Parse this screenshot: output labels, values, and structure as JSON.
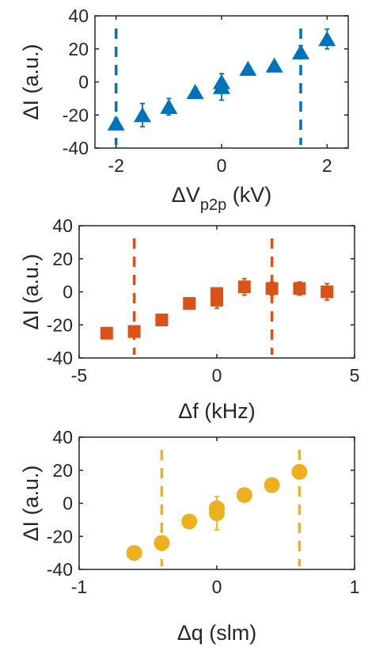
{
  "chart_data": [
    {
      "type": "scatter",
      "marker": "triangle",
      "color": "#0072BD",
      "xlabel": "ΔV",
      "xlabel_sub": "p2p",
      "xlabel_unit": " (kV)",
      "ylabel": "ΔI (a.u.)",
      "xlim": [
        -2.4,
        2.4
      ],
      "ylim": [
        -40,
        40
      ],
      "xticks": [
        "-2",
        "0",
        "2"
      ],
      "yticks": [
        "-40",
        "-20",
        "0",
        "20",
        "40"
      ],
      "ref_lines": [
        -2,
        1.5
      ],
      "points": [
        {
          "x": -2.0,
          "y": -25,
          "err": 3
        },
        {
          "x": -1.5,
          "y": -20,
          "err": 7
        },
        {
          "x": -1.0,
          "y": -15,
          "err": 5
        },
        {
          "x": -0.5,
          "y": -6,
          "err": 2
        },
        {
          "x": 0.0,
          "y": -3,
          "err": 8
        },
        {
          "x": 0.0,
          "y": 0,
          "err": 2
        },
        {
          "x": 0.5,
          "y": 8,
          "err": 2
        },
        {
          "x": 1.0,
          "y": 10,
          "err": 2
        },
        {
          "x": 1.5,
          "y": 18,
          "err": 4
        },
        {
          "x": 2.0,
          "y": 26,
          "err": 6
        }
      ]
    },
    {
      "type": "scatter",
      "marker": "square",
      "color": "#D95319",
      "xlabel": "Δf (kHz)",
      "ylabel": "ΔI (a.u.)",
      "xlim": [
        -5,
        5
      ],
      "ylim": [
        -40,
        40
      ],
      "xticks": [
        "-5",
        "0",
        "5"
      ],
      "yticks": [
        "-40",
        "-20",
        "0",
        "20",
        "40"
      ],
      "ref_lines": [
        -3,
        2
      ],
      "points": [
        {
          "x": -4,
          "y": -25,
          "err": 3
        },
        {
          "x": -3,
          "y": -24,
          "err": 3
        },
        {
          "x": -2,
          "y": -17,
          "err": 2
        },
        {
          "x": -1,
          "y": -7,
          "err": 2
        },
        {
          "x": 0,
          "y": -5,
          "err": 5
        },
        {
          "x": 0,
          "y": -1,
          "err": 3
        },
        {
          "x": 1,
          "y": 3,
          "err": 5
        },
        {
          "x": 2,
          "y": 2,
          "err": 4
        },
        {
          "x": 3,
          "y": 2,
          "err": 4
        },
        {
          "x": 4,
          "y": 0,
          "err": 5
        }
      ]
    },
    {
      "type": "scatter",
      "marker": "circle",
      "color": "#EDB120",
      "xlabel": "Δq (slm)",
      "ylabel": "ΔI (a.u.)",
      "xlim": [
        -1,
        1
      ],
      "ylim": [
        -40,
        40
      ],
      "xticks": [
        "-1",
        "0",
        "1"
      ],
      "yticks": [
        "-40",
        "-20",
        "0",
        "20",
        "40"
      ],
      "ref_lines": [
        -0.4,
        0.6
      ],
      "points": [
        {
          "x": -0.6,
          "y": -30,
          "err": 2
        },
        {
          "x": -0.4,
          "y": -24,
          "err": 3
        },
        {
          "x": -0.2,
          "y": -11,
          "err": 4
        },
        {
          "x": 0.0,
          "y": -6,
          "err": 10
        },
        {
          "x": 0.0,
          "y": -3,
          "err": 3
        },
        {
          "x": 0.2,
          "y": 5,
          "err": 2
        },
        {
          "x": 0.4,
          "y": 11,
          "err": 2
        },
        {
          "x": 0.6,
          "y": 19,
          "err": 4
        }
      ]
    }
  ]
}
